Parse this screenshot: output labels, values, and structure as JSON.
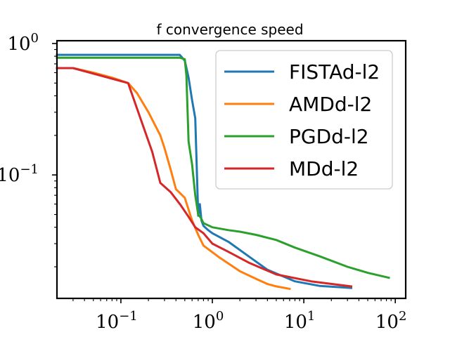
{
  "chart_data": {
    "type": "line",
    "title": "f convergence speed",
    "xlabel": "",
    "ylabel": "",
    "xscale": "log",
    "yscale": "log",
    "xlim": [
      0.02,
      130
    ],
    "ylim": [
      0.0115,
      1.05
    ],
    "grid": false,
    "legend_position": "top-right",
    "x_ticks": [
      {
        "base": "10",
        "exp": "−1",
        "value": 0.1
      },
      {
        "base": "10",
        "exp": "0",
        "value": 1
      },
      {
        "base": "10",
        "exp": "1",
        "value": 10
      },
      {
        "base": "10",
        "exp": "2",
        "value": 100
      }
    ],
    "y_ticks": [
      {
        "base": "10",
        "exp": "0",
        "value": 1
      },
      {
        "base": "10",
        "exp": "−1",
        "value": 0.1
      }
    ],
    "series": [
      {
        "name": "FISTAd-l2",
        "color": "#1f77b4",
        "x": [
          0.02,
          0.44,
          0.5,
          0.55,
          0.6,
          0.65,
          0.7,
          0.73,
          0.76,
          0.8,
          0.9,
          1.0,
          1.5,
          2.5,
          4,
          8,
          15,
          33
        ],
        "y": [
          0.82,
          0.82,
          0.74,
          0.55,
          0.37,
          0.27,
          0.049,
          0.06,
          0.045,
          0.041,
          0.038,
          0.036,
          0.031,
          0.024,
          0.019,
          0.0155,
          0.0143,
          0.0138
        ]
      },
      {
        "name": "AMDd-l2",
        "color": "#ff7f0e",
        "x": [
          0.02,
          0.03,
          0.05,
          0.08,
          0.12,
          0.15,
          0.2,
          0.27,
          0.3,
          0.35,
          0.4,
          0.5,
          0.6,
          0.7,
          0.8,
          1.2,
          2,
          3,
          4,
          5,
          7
        ],
        "y": [
          0.65,
          0.65,
          0.6,
          0.55,
          0.5,
          0.42,
          0.3,
          0.2,
          0.16,
          0.11,
          0.078,
          0.067,
          0.045,
          0.035,
          0.029,
          0.0235,
          0.0185,
          0.0162,
          0.0148,
          0.0142,
          0.0136
        ]
      },
      {
        "name": "PGDd-l2",
        "color": "#2ca02c",
        "x": [
          0.02,
          0.3,
          0.44,
          0.5,
          0.52,
          0.55,
          0.6,
          0.65,
          0.7,
          0.75,
          0.8,
          1.0,
          1.5,
          2,
          3,
          5,
          8,
          15,
          30,
          50,
          85
        ],
        "y": [
          0.78,
          0.78,
          0.78,
          0.76,
          0.57,
          0.18,
          0.12,
          0.07,
          0.05,
          0.047,
          0.043,
          0.04,
          0.038,
          0.037,
          0.035,
          0.032,
          0.028,
          0.024,
          0.02,
          0.018,
          0.0165
        ]
      },
      {
        "name": "MDd-l2",
        "color": "#d62728",
        "x": [
          0.02,
          0.03,
          0.12,
          0.17,
          0.22,
          0.27,
          0.35,
          0.45,
          0.55,
          0.65,
          0.8,
          1.0,
          1.5,
          2.5,
          5,
          12,
          33
        ],
        "y": [
          0.65,
          0.65,
          0.5,
          0.25,
          0.15,
          0.087,
          0.074,
          0.059,
          0.048,
          0.04,
          0.036,
          0.03,
          0.026,
          0.0215,
          0.0175,
          0.0155,
          0.0142
        ]
      }
    ]
  }
}
